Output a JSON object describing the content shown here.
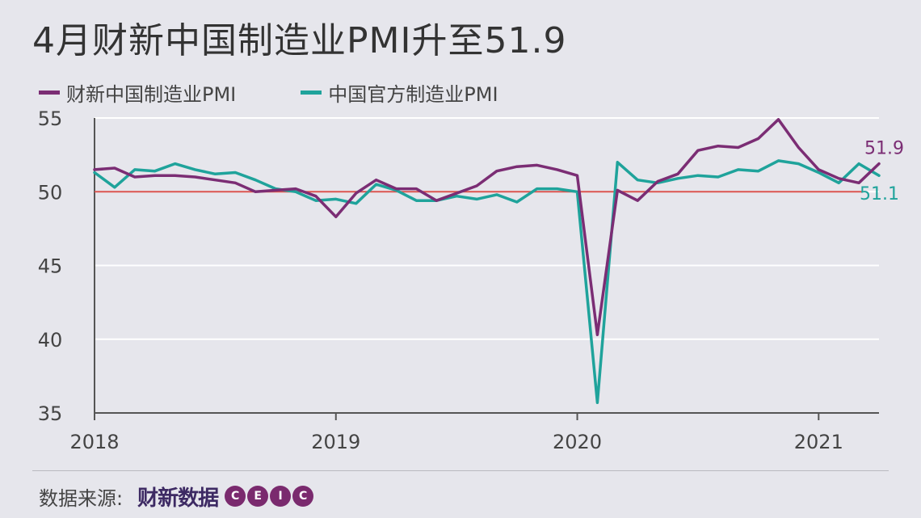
{
  "title": "4月财新中国制造业PMI升至51.9",
  "legend": [
    {
      "label": "财新中国制造业PMI",
      "color": "#7b2d74"
    },
    {
      "label": "中国官方制造业PMI",
      "color": "#1fa39b"
    }
  ],
  "footer": {
    "source_label": "数据来源:",
    "logo_text": "财新数据",
    "ceic_letters": [
      "C",
      "E",
      "I",
      "C"
    ]
  },
  "colors": {
    "caixin": "#7b2d74",
    "official": "#1fa39b",
    "reference": "#d9534f",
    "axis": "#555555",
    "grid": "#ffffff"
  },
  "chart_data": {
    "type": "line",
    "title": "4月财新中国制造业PMI升至51.9",
    "xlabel": "",
    "ylabel": "",
    "ylim": [
      35,
      55
    ],
    "yticks": [
      35,
      40,
      45,
      50,
      55
    ],
    "xtick_labels": [
      "2018",
      "2019",
      "2020",
      "2021"
    ],
    "x_start": "2018-01",
    "x_end": "2021-04",
    "grid": "horizontal",
    "legend_position": "top-left",
    "reference_line": 50,
    "x": [
      "2018-01",
      "2018-02",
      "2018-03",
      "2018-04",
      "2018-05",
      "2018-06",
      "2018-07",
      "2018-08",
      "2018-09",
      "2018-10",
      "2018-11",
      "2018-12",
      "2019-01",
      "2019-02",
      "2019-03",
      "2019-04",
      "2019-05",
      "2019-06",
      "2019-07",
      "2019-08",
      "2019-09",
      "2019-10",
      "2019-11",
      "2019-12",
      "2020-01",
      "2020-02",
      "2020-03",
      "2020-04",
      "2020-05",
      "2020-06",
      "2020-07",
      "2020-08",
      "2020-09",
      "2020-10",
      "2020-11",
      "2020-12",
      "2021-01",
      "2021-02",
      "2021-03",
      "2021-04"
    ],
    "series": [
      {
        "name": "财新中国制造业PMI",
        "values": [
          51.5,
          51.6,
          51.0,
          51.1,
          51.1,
          51.0,
          50.8,
          50.6,
          50.0,
          50.1,
          50.2,
          49.7,
          48.3,
          49.9,
          50.8,
          50.2,
          50.2,
          49.4,
          49.9,
          50.4,
          51.4,
          51.7,
          51.8,
          51.5,
          51.1,
          40.3,
          50.1,
          49.4,
          50.7,
          51.2,
          52.8,
          53.1,
          53.0,
          53.6,
          54.9,
          53.0,
          51.5,
          50.9,
          50.6,
          51.9
        ],
        "end_label": "51.9"
      },
      {
        "name": "中国官方制造业PMI",
        "values": [
          51.3,
          50.3,
          51.5,
          51.4,
          51.9,
          51.5,
          51.2,
          51.3,
          50.8,
          50.2,
          50.0,
          49.4,
          49.5,
          49.2,
          50.5,
          50.1,
          49.4,
          49.4,
          49.7,
          49.5,
          49.8,
          49.3,
          50.2,
          50.2,
          50.0,
          35.7,
          52.0,
          50.8,
          50.6,
          50.9,
          51.1,
          51.0,
          51.5,
          51.4,
          52.1,
          51.9,
          51.3,
          50.6,
          51.9,
          51.1
        ],
        "end_label": "51.1"
      }
    ]
  }
}
